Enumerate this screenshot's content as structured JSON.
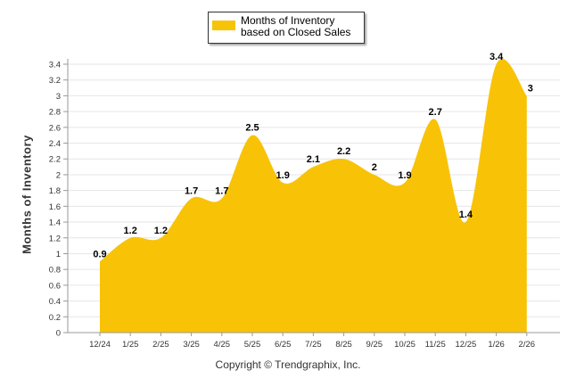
{
  "chart_data": {
    "type": "area",
    "categories": [
      "12/24",
      "1/25",
      "2/25",
      "3/25",
      "4/25",
      "5/25",
      "6/25",
      "7/25",
      "8/25",
      "9/25",
      "10/25",
      "11/25",
      "12/25",
      "1/26",
      "2/26"
    ],
    "series": [
      {
        "name": "Months of Inventory based on Closed Sales",
        "values": [
          0.9,
          1.2,
          1.2,
          1.7,
          1.7,
          2.5,
          1.9,
          2.1,
          2.2,
          2,
          1.9,
          2.7,
          1.4,
          3.4,
          3
        ]
      }
    ],
    "data_labels": [
      "0.9",
      "1.2",
      "1.2",
      "1.7",
      "1.7",
      "2.5",
      "1.9",
      "2.1",
      "2.2",
      "2",
      "1.9",
      "2.7",
      "1.4",
      "3.4",
      "3"
    ],
    "ylabel": "Months of Inventory",
    "xlabel": "",
    "ylim": [
      0,
      3.4
    ],
    "yticks": [
      "0",
      "0.2",
      "0.4",
      "0.6",
      "0.8",
      "1",
      "1.2",
      "1.4",
      "1.6",
      "1.8",
      "2",
      "2.2",
      "2.4",
      "2.6",
      "2.8",
      "3",
      "3.2",
      "3.4"
    ],
    "grid": true,
    "legend_position": "top-center",
    "fill_color": "#F8C307"
  },
  "footer": {
    "copyright": "Copyright © Trendgraphix, Inc."
  }
}
